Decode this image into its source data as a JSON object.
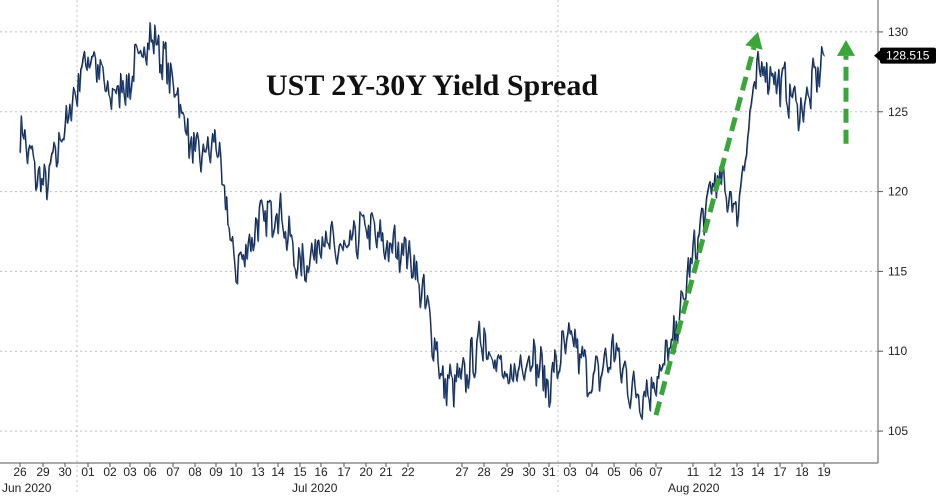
{
  "chart_data": {
    "type": "line",
    "title": "UST 2Y-30Y Yield Spread",
    "ylim": [
      103,
      132
    ],
    "y_ticks": [
      105,
      110,
      115,
      120,
      125,
      130
    ],
    "last_value": "128.515",
    "x_day_labels": [
      "26",
      "29",
      "30",
      "01",
      "02",
      "03",
      "06",
      "07",
      "08",
      "09",
      "10",
      "13",
      "14",
      "15",
      "16",
      "17",
      "20",
      "21",
      "22",
      "27",
      "28",
      "29",
      "30",
      "31",
      "03",
      "04",
      "05",
      "06",
      "07",
      "11",
      "12",
      "13",
      "14",
      "17",
      "18",
      "19"
    ],
    "x_month_labels": [
      "Jun 2020",
      "Jul 2020",
      "Aug 2020"
    ],
    "series": [
      {
        "x": [
          "06-26",
          "06-29",
          "06-30",
          "07-01",
          "07-02",
          "07-03",
          "07-06",
          "07-07",
          "07-08",
          "07-09",
          "07-10",
          "07-13",
          "07-14",
          "07-15",
          "07-16",
          "07-17",
          "07-20",
          "07-21",
          "07-22",
          "07-23",
          "07-24",
          "07-27",
          "07-28",
          "07-29",
          "07-30",
          "07-31",
          "08-03",
          "08-04",
          "08-05",
          "08-06",
          "08-07",
          "08-10",
          "08-11",
          "08-12",
          "08-13",
          "08-14",
          "08-17",
          "08-18",
          "08-19"
        ],
        "values": [
          124,
          120,
          124,
          129,
          126,
          127,
          130,
          127,
          122,
          123,
          115,
          118,
          119,
          115,
          117,
          116,
          118,
          116.5,
          116.5,
          113,
          108,
          108,
          111,
          108,
          110,
          108,
          111,
          108,
          110,
          107,
          108,
          111,
          116,
          121,
          119,
          128,
          127,
          125,
          128.515
        ],
        "color": "#1f4e9a"
      }
    ],
    "annotations": [
      {
        "type": "arrow",
        "style": "dashed",
        "color": "#3aa63a",
        "from": [
          "08-07",
          106
        ],
        "to": [
          "08-14",
          130
        ]
      },
      {
        "type": "arrow",
        "style": "dashed",
        "color": "#3aa63a",
        "from": [
          "08-20",
          123
        ],
        "to": [
          "08-20",
          129.5
        ]
      }
    ],
    "grid": true,
    "legend": "none"
  },
  "colors": {
    "line": "#1f4e9a",
    "line_dark": "#111111",
    "arrow": "#3aa63a",
    "grid": "#bfbfbf",
    "last_badge": "#000000"
  }
}
